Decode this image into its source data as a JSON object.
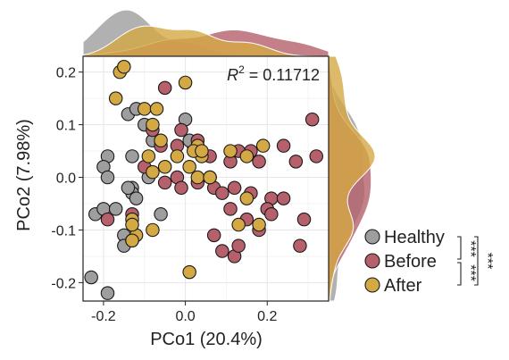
{
  "chart_data": {
    "type": "scatter",
    "xlabel": "PCo1 (20.4%)",
    "ylabel": "PCo2 (7.98%)",
    "xlim": [
      -0.25,
      0.35
    ],
    "ylim": [
      -0.235,
      0.23
    ],
    "x_ticks": [
      -0.2,
      0.0,
      0.2
    ],
    "x_tick_labels": [
      "-0.2",
      "0.0",
      "0.2"
    ],
    "y_ticks": [
      -0.2,
      -0.1,
      0.0,
      0.1,
      0.2
    ],
    "y_tick_labels": [
      "-0.2",
      "-0.1",
      "0.0",
      "0.1",
      "0.2"
    ],
    "grid": true,
    "legend_position": "right",
    "annotation": {
      "prefix": "R",
      "superscript": "2",
      "value": " = 0.11712"
    },
    "significance": {
      "healthy_vs_before": "***",
      "before_vs_after": "***",
      "healthy_vs_after": "***"
    },
    "series": [
      {
        "name": "Healthy",
        "color": "#9e9e9e",
        "points": [
          [
            -0.14,
            0.12
          ],
          [
            -0.12,
            0.13
          ],
          [
            -0.1,
            0.1
          ],
          [
            -0.08,
            0.07
          ],
          [
            -0.19,
            0.04
          ],
          [
            -0.2,
            0.02
          ],
          [
            -0.19,
            0.0
          ],
          [
            -0.13,
            0.04
          ],
          [
            -0.09,
            0.0
          ],
          [
            -0.13,
            -0.02
          ],
          [
            -0.13,
            -0.03
          ],
          [
            -0.14,
            -0.02
          ],
          [
            -0.12,
            -0.04
          ],
          [
            -0.22,
            -0.07
          ],
          [
            -0.2,
            -0.06
          ],
          [
            -0.17,
            -0.06
          ],
          [
            -0.06,
            -0.07
          ],
          [
            -0.15,
            -0.11
          ],
          [
            -0.15,
            -0.13
          ],
          [
            -0.13,
            -0.12
          ],
          [
            -0.23,
            -0.19
          ],
          [
            -0.19,
            -0.22
          ],
          [
            0.02,
            0.06
          ],
          [
            0.01,
            0.07
          ],
          [
            0.0,
            0.11
          ],
          [
            0.03,
            0.06
          ]
        ]
      },
      {
        "name": "Before",
        "color": "#b5606b",
        "points": [
          [
            -0.05,
            0.17
          ],
          [
            -0.08,
            0.09
          ],
          [
            -0.06,
            0.06
          ],
          [
            -0.02,
            0.06
          ],
          [
            -0.01,
            0.09
          ],
          [
            0.03,
            0.07
          ],
          [
            0.06,
            0.04
          ],
          [
            0.13,
            0.05
          ],
          [
            0.16,
            0.05
          ],
          [
            0.18,
            0.03
          ],
          [
            0.24,
            0.06
          ],
          [
            0.31,
            0.11
          ],
          [
            0.32,
            0.04
          ],
          [
            0.27,
            0.03
          ],
          [
            -0.05,
            -0.01
          ],
          [
            -0.02,
            0.0
          ],
          [
            -0.01,
            -0.02
          ],
          [
            0.03,
            -0.01
          ],
          [
            0.07,
            -0.02
          ],
          [
            0.09,
            -0.03
          ],
          [
            0.12,
            -0.02
          ],
          [
            0.16,
            -0.03
          ],
          [
            0.21,
            -0.04
          ],
          [
            0.24,
            -0.04
          ],
          [
            0.2,
            -0.06
          ],
          [
            0.21,
            -0.07
          ],
          [
            0.29,
            -0.08
          ],
          [
            0.11,
            -0.06
          ],
          [
            0.18,
            -0.1
          ],
          [
            0.07,
            -0.11
          ],
          [
            0.09,
            -0.14
          ],
          [
            0.12,
            -0.15
          ],
          [
            0.13,
            -0.13
          ],
          [
            0.28,
            -0.13
          ],
          [
            0.15,
            -0.08
          ],
          [
            -0.19,
            -0.08
          ],
          [
            -0.13,
            -0.07
          ],
          [
            -0.1,
            0.02
          ],
          [
            0.06,
            0.0
          ],
          [
            0.11,
            0.03
          ]
        ]
      },
      {
        "name": "After",
        "color": "#d4a944",
        "points": [
          [
            -0.16,
            0.2
          ],
          [
            -0.15,
            0.21
          ],
          [
            -0.17,
            0.15
          ],
          [
            -0.1,
            0.13
          ],
          [
            -0.08,
            0.1
          ],
          [
            -0.07,
            0.13
          ],
          [
            0.0,
            0.18
          ],
          [
            -0.06,
            0.07
          ],
          [
            -0.02,
            0.04
          ],
          [
            0.03,
            0.06
          ],
          [
            0.04,
            0.04
          ],
          [
            0.02,
            0.05
          ],
          [
            0.11,
            0.05
          ],
          [
            0.15,
            0.04
          ],
          [
            0.19,
            0.06
          ],
          [
            0.01,
            0.02
          ],
          [
            -0.05,
            0.02
          ],
          [
            -0.08,
            0.01
          ],
          [
            -0.09,
            0.04
          ],
          [
            0.03,
            0.0
          ],
          [
            0.13,
            -0.09
          ],
          [
            0.15,
            -0.04
          ],
          [
            -0.13,
            -0.08
          ],
          [
            -0.12,
            -0.11
          ],
          [
            -0.13,
            -0.12
          ],
          [
            -0.08,
            -0.1
          ],
          [
            -0.13,
            -0.09
          ],
          [
            0.01,
            -0.18
          ],
          [
            0.18,
            -0.09
          ],
          [
            0.04,
            0.05
          ],
          [
            0.06,
            0.0
          ]
        ]
      }
    ]
  }
}
